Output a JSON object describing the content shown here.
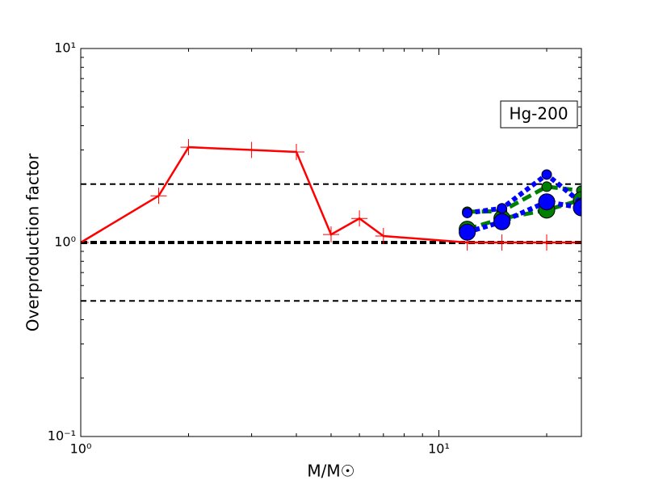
{
  "chart_data": {
    "type": "line",
    "xlabel": "M/M☉",
    "ylabel": "Overproduction factor",
    "annotation": "Hg-200",
    "xscale": "log",
    "yscale": "log",
    "xlim": [
      1,
      25
    ],
    "ylim": [
      0.1,
      10
    ],
    "xticks": [
      {
        "value": 1,
        "label": "10⁰"
      },
      {
        "value": 10,
        "label": "10¹"
      }
    ],
    "yticks": [
      {
        "value": 0.1,
        "label": "10⁻¹"
      },
      {
        "value": 1,
        "label": "10⁰"
      },
      {
        "value": 10,
        "label": "10¹"
      }
    ],
    "xminor": [
      2,
      3,
      4,
      5,
      6,
      7,
      8,
      9,
      20
    ],
    "yminor": [
      0.2,
      0.3,
      0.4,
      0.5,
      0.6,
      0.7,
      0.8,
      0.9,
      2,
      3,
      4,
      5,
      6,
      7,
      8,
      9
    ],
    "hlines": [
      {
        "y": 2,
        "style": "dashed"
      },
      {
        "y": 1,
        "style": "bold-dashed"
      },
      {
        "y": 0.5,
        "style": "dashed"
      }
    ],
    "series": [
      {
        "color": "#ff0000",
        "linestyle": "solid",
        "marker": "plus",
        "x": [
          1,
          1.65,
          2,
          3,
          4,
          5,
          6,
          7,
          12,
          15,
          20,
          25
        ],
        "values": [
          1,
          1.74,
          3.1,
          3.0,
          2.93,
          1.1,
          1.33,
          1.08,
          1,
          1,
          1,
          1
        ]
      },
      {
        "color": "#008000",
        "linestyle": "dashed",
        "marker": "circle-small",
        "x": [
          12,
          15,
          20,
          25
        ],
        "values": [
          1.44,
          1.45,
          1.94,
          1.85
        ]
      },
      {
        "color": "#008000",
        "linestyle": "dashed",
        "marker": "circle-large",
        "x": [
          12,
          15,
          20,
          25
        ],
        "values": [
          1.17,
          1.33,
          1.47,
          1.66
        ]
      },
      {
        "color": "#0000ff",
        "linestyle": "dotted",
        "marker": "circle-small",
        "x": [
          12,
          15,
          20,
          25
        ],
        "values": [
          1.42,
          1.5,
          2.24,
          1.6
        ]
      },
      {
        "color": "#0000ff",
        "linestyle": "dotted",
        "marker": "circle-large",
        "x": [
          12,
          15,
          20,
          25
        ],
        "values": [
          1.13,
          1.28,
          1.62,
          1.51
        ]
      }
    ]
  }
}
